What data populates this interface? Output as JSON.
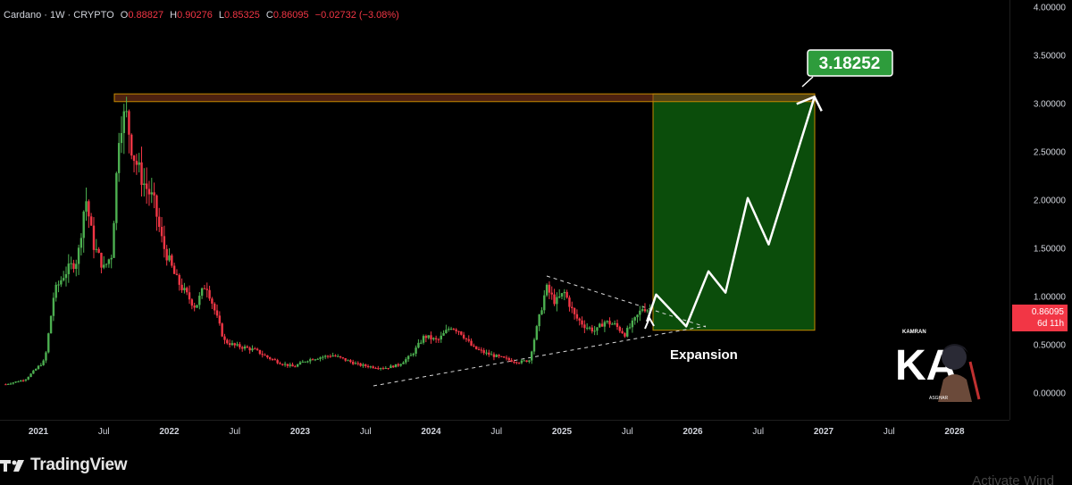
{
  "legend": {
    "symbol": "Cardano · 1W · CRYPTO",
    "open_k": "O",
    "open_v": "0.88827",
    "high_k": "H",
    "high_v": "0.90276",
    "low_k": "L",
    "low_v": "0.85325",
    "close_k": "C",
    "close_v": "0.86095",
    "change": "−0.02732 (−3.08%)"
  },
  "price_tag": {
    "price": "0.86095",
    "countdown": "6d 11h"
  },
  "branding": {
    "name": "TradingView",
    "watermark": "Activate Wind"
  },
  "avatar_text": {
    "top": "KAMRAN",
    "bottom": "ASGHAR",
    "letters": "KA"
  },
  "colors": {
    "up": "#4caf50",
    "down": "#f23645",
    "target_box": "#0b4d0b",
    "resistance": "#c48a00",
    "target_label_bg": "#2e9c3c"
  },
  "chart_data": {
    "type": "candlestick",
    "title": "",
    "xlabel": "",
    "ylabel": "",
    "ylim": [
      -0.05,
      4.05
    ],
    "y_ticks": [
      "4.00000",
      "3.50000",
      "3.00000",
      "2.50000",
      "2.00000",
      "1.50000",
      "1.00000",
      "0.50000",
      "0.00000"
    ],
    "x_ticks": [
      {
        "label": "2021",
        "t": 2021.0,
        "year": true
      },
      {
        "label": "Jul",
        "t": 2021.5
      },
      {
        "label": "2022",
        "t": 2022.0,
        "year": true
      },
      {
        "label": "Jul",
        "t": 2022.5
      },
      {
        "label": "2023",
        "t": 2023.0,
        "year": true
      },
      {
        "label": "Jul",
        "t": 2023.5
      },
      {
        "label": "2024",
        "t": 2024.0,
        "year": true
      },
      {
        "label": "Jul",
        "t": 2024.5
      },
      {
        "label": "2025",
        "t": 2025.0,
        "year": true
      },
      {
        "label": "Jul",
        "t": 2025.5
      },
      {
        "label": "2026",
        "t": 2026.0,
        "year": true
      },
      {
        "label": "Jul",
        "t": 2026.5
      },
      {
        "label": "2027",
        "t": 2027.0,
        "year": true
      },
      {
        "label": "Jul",
        "t": 2027.5
      },
      {
        "label": "2028",
        "t": 2028.0,
        "year": true
      }
    ],
    "price_path": [
      [
        2020.75,
        0.1
      ],
      [
        2020.9,
        0.15
      ],
      [
        2021.05,
        0.35
      ],
      [
        2021.12,
        1.05
      ],
      [
        2021.2,
        1.25
      ],
      [
        2021.3,
        1.4
      ],
      [
        2021.36,
        2.05
      ],
      [
        2021.42,
        1.55
      ],
      [
        2021.5,
        1.3
      ],
      [
        2021.56,
        1.45
      ],
      [
        2021.62,
        2.8
      ],
      [
        2021.67,
        2.9
      ],
      [
        2021.72,
        2.5
      ],
      [
        2021.8,
        2.2
      ],
      [
        2021.88,
        2.0
      ],
      [
        2021.95,
        1.55
      ],
      [
        2022.05,
        1.2
      ],
      [
        2022.12,
        1.05
      ],
      [
        2022.2,
        0.9
      ],
      [
        2022.28,
        1.15
      ],
      [
        2022.35,
        0.85
      ],
      [
        2022.42,
        0.55
      ],
      [
        2022.5,
        0.5
      ],
      [
        2022.58,
        0.48
      ],
      [
        2022.66,
        0.45
      ],
      [
        2022.75,
        0.38
      ],
      [
        2022.85,
        0.32
      ],
      [
        2022.95,
        0.28
      ],
      [
        2023.05,
        0.35
      ],
      [
        2023.15,
        0.38
      ],
      [
        2023.25,
        0.4
      ],
      [
        2023.35,
        0.35
      ],
      [
        2023.45,
        0.3
      ],
      [
        2023.55,
        0.28
      ],
      [
        2023.65,
        0.27
      ],
      [
        2023.75,
        0.3
      ],
      [
        2023.85,
        0.4
      ],
      [
        2023.95,
        0.6
      ],
      [
        2024.05,
        0.55
      ],
      [
        2024.15,
        0.7
      ],
      [
        2024.22,
        0.65
      ],
      [
        2024.32,
        0.48
      ],
      [
        2024.42,
        0.42
      ],
      [
        2024.52,
        0.38
      ],
      [
        2024.6,
        0.35
      ],
      [
        2024.68,
        0.33
      ],
      [
        2024.75,
        0.35
      ],
      [
        2024.82,
        0.75
      ],
      [
        2024.88,
        1.1
      ],
      [
        2024.95,
        0.95
      ],
      [
        2025.02,
        1.05
      ],
      [
        2025.1,
        0.8
      ],
      [
        2025.18,
        0.7
      ],
      [
        2025.26,
        0.65
      ],
      [
        2025.32,
        0.75
      ],
      [
        2025.4,
        0.72
      ],
      [
        2025.48,
        0.62
      ],
      [
        2025.55,
        0.75
      ],
      [
        2025.62,
        0.9
      ],
      [
        2025.68,
        0.86
      ]
    ],
    "resistance_zone": {
      "from": 3.03,
      "to": 3.11
    },
    "target_box": {
      "low": 0.66,
      "high": 3.11
    },
    "target_label": "3.18252",
    "annotation": "Expansion",
    "projection_path": [
      [
        2025.65,
        0.75
      ],
      [
        2025.72,
        1.03
      ],
      [
        2025.95,
        0.7
      ],
      [
        2026.12,
        1.27
      ],
      [
        2026.25,
        1.05
      ],
      [
        2026.42,
        2.03
      ],
      [
        2026.58,
        1.55
      ],
      [
        2026.93,
        3.08
      ]
    ]
  }
}
